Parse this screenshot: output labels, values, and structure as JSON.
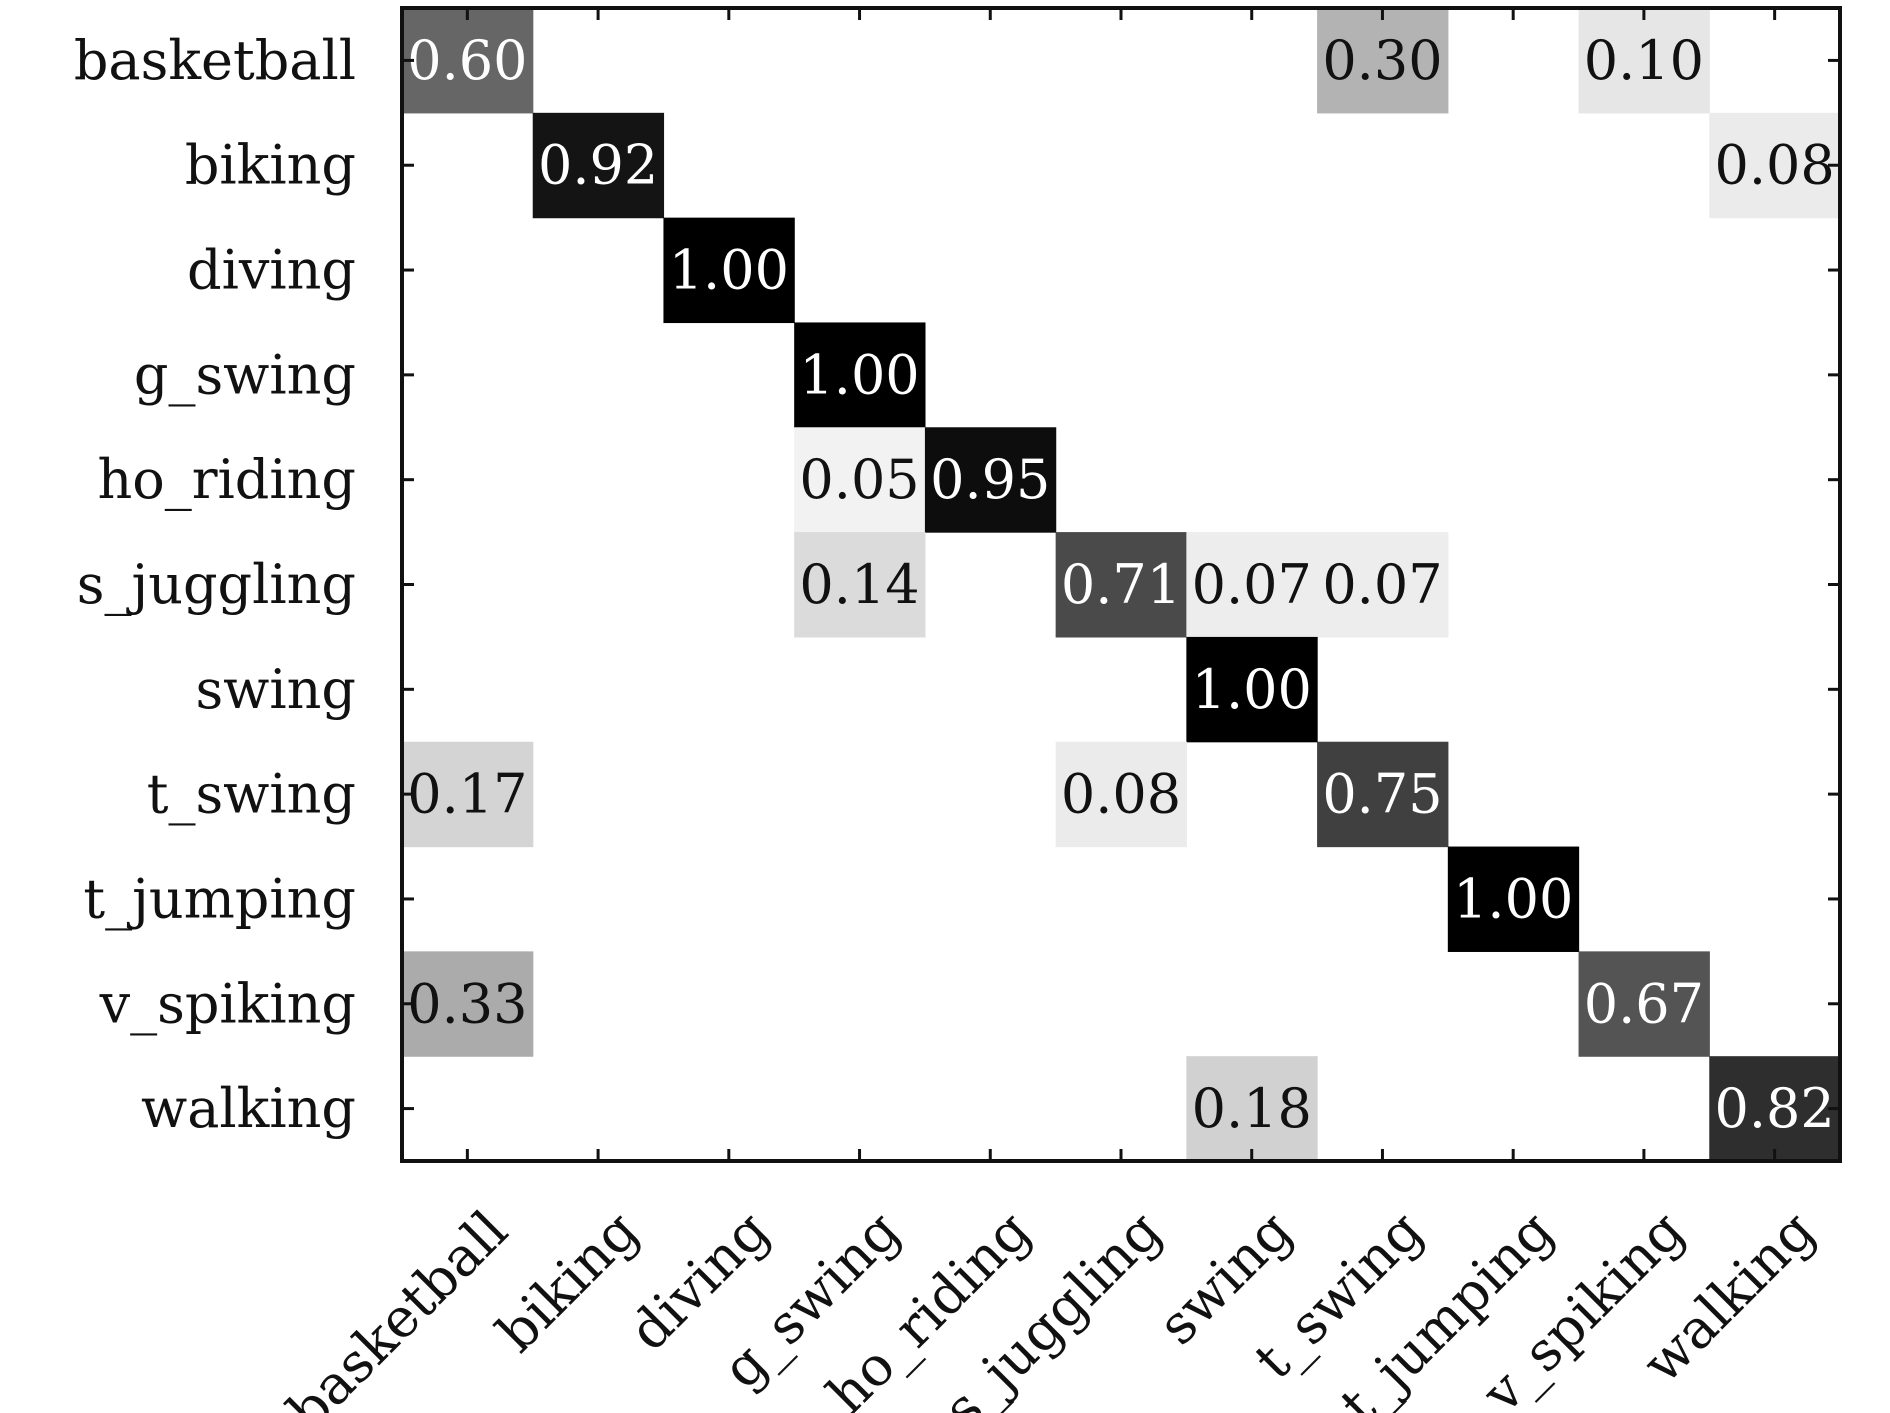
{
  "chart_data": {
    "type": "heatmap",
    "title": "",
    "xlabel": "",
    "ylabel": "",
    "grid": false,
    "legend": "none",
    "color_scale": {
      "low": "#ffffff",
      "high": "#000000"
    },
    "rows": [
      "basketball",
      "biking",
      "diving",
      "g_swing",
      "ho_riding",
      "s_juggling",
      "swing",
      "t_swing",
      "t_jumping",
      "v_spiking",
      "walking"
    ],
    "columns": [
      "basketball",
      "biking",
      "diving",
      "g_swing",
      "ho_riding",
      "s_juggling",
      "swing",
      "t_swing",
      "t_jumping",
      "v_spiking",
      "walking"
    ],
    "values": [
      [
        0.6,
        0,
        0,
        0,
        0,
        0,
        0,
        0.3,
        0,
        0.1,
        0
      ],
      [
        0,
        0.92,
        0,
        0,
        0,
        0,
        0,
        0,
        0,
        0,
        0.08
      ],
      [
        0,
        0,
        1.0,
        0,
        0,
        0,
        0,
        0,
        0,
        0,
        0
      ],
      [
        0,
        0,
        0,
        1.0,
        0,
        0,
        0,
        0,
        0,
        0,
        0
      ],
      [
        0,
        0,
        0,
        0.05,
        0.95,
        0,
        0,
        0,
        0,
        0,
        0
      ],
      [
        0,
        0,
        0,
        0.14,
        0,
        0.71,
        0.07,
        0.07,
        0,
        0,
        0
      ],
      [
        0,
        0,
        0,
        0,
        0,
        0,
        1.0,
        0,
        0,
        0,
        0
      ],
      [
        0.17,
        0,
        0,
        0,
        0,
        0.08,
        0,
        0.75,
        0,
        0,
        0
      ],
      [
        0,
        0,
        0,
        0,
        0,
        0,
        0,
        0,
        1.0,
        0,
        0
      ],
      [
        0.33,
        0,
        0,
        0,
        0,
        0,
        0,
        0,
        0,
        0.67,
        0
      ],
      [
        0,
        0,
        0,
        0,
        0,
        0,
        0.18,
        0,
        0,
        0,
        0.82
      ]
    ]
  }
}
